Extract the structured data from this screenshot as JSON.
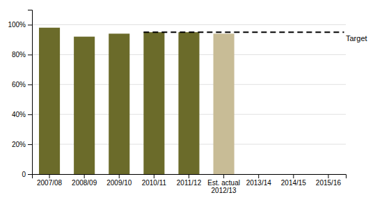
{
  "chart_data": {
    "type": "bar",
    "categories": [
      "2007/08",
      "2008/09",
      "2009/10",
      "2010/11",
      "2011/12",
      "Est. actual\n2012/13",
      "2013/14",
      "2014/15",
      "2015/16"
    ],
    "values": [
      98,
      92,
      94,
      95,
      95,
      94,
      null,
      null,
      null
    ],
    "colors": [
      "#6b6b2a",
      "#6b6b2a",
      "#6b6b2a",
      "#6b6b2a",
      "#6b6b2a",
      "#c8bc96",
      null,
      null,
      null
    ],
    "annotations": [
      {
        "type": "line",
        "y": 95,
        "text": "Target",
        "x_start": "2010/11"
      }
    ],
    "ylim": [
      0,
      110
    ],
    "yticks": [
      0,
      {
        "value": 20,
        "label": "20%"
      },
      {
        "value": 40,
        "label": "40%"
      },
      {
        "value": 60,
        "label": "60%"
      },
      {
        "value": 80,
        "label": "80%"
      },
      {
        "value": 100,
        "label": "100%"
      }
    ],
    "grid": true
  }
}
